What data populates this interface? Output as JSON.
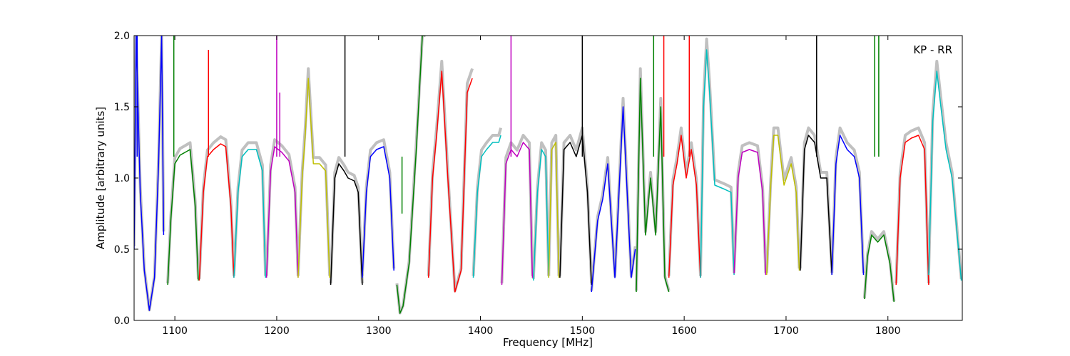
{
  "chart_data": {
    "type": "line",
    "annotation": "KP - RR",
    "xlabel": "Frequency [MHz]",
    "ylabel": "Amplitude [arbitrary units]",
    "xlim": [
      1060,
      1873
    ],
    "ylim": [
      0,
      2.0
    ],
    "x_ticks": [
      1100,
      1200,
      1300,
      1400,
      1500,
      1600,
      1700,
      1800
    ],
    "y_ticks": [
      0.0,
      0.5,
      1.0,
      1.5,
      2.0
    ],
    "x_tick_labels": [
      "1100",
      "1200",
      "1300",
      "1400",
      "1500",
      "1600",
      "1700",
      "1800"
    ],
    "y_tick_labels": [
      "0.0",
      "0.5",
      "1.0",
      "1.5",
      "2.0"
    ],
    "grid": false,
    "background_color": "#c0c0c0",
    "channel_colors": [
      "#0000ff",
      "#008000",
      "#ff0000",
      "#00bfbf",
      "#bf00bf",
      "#bfbf00",
      "#000000"
    ],
    "series": [
      {
        "color": "#0000ff",
        "x": [
          1060,
          1062,
          1066,
          1070,
          1075,
          1080,
          1084,
          1087,
          1089
        ],
        "y": [
          0.5,
          2.0,
          0.9,
          0.35,
          0.07,
          0.3,
          1.1,
          2.0,
          0.6
        ]
      },
      {
        "color": "#008000",
        "x": [
          1093,
          1096,
          1100,
          1105,
          1110,
          1115,
          1120,
          1123
        ],
        "y": [
          0.25,
          0.7,
          1.1,
          1.16,
          1.18,
          1.2,
          0.8,
          0.28
        ]
      },
      {
        "color": "#ff0000",
        "x": [
          1124,
          1128,
          1132,
          1138,
          1145,
          1150,
          1155,
          1158
        ],
        "y": [
          0.28,
          0.9,
          1.15,
          1.2,
          1.24,
          1.22,
          0.8,
          0.3
        ]
      },
      {
        "color": "#00bfbf",
        "x": [
          1158,
          1162,
          1166,
          1172,
          1180,
          1186,
          1189
        ],
        "y": [
          0.3,
          0.9,
          1.15,
          1.2,
          1.2,
          1.05,
          0.3
        ]
      },
      {
        "color": "#bf00bf",
        "x": [
          1190,
          1194,
          1198,
          1205,
          1212,
          1218,
          1221
        ],
        "y": [
          0.3,
          1.05,
          1.22,
          1.18,
          1.12,
          0.9,
          0.3
        ]
      },
      {
        "color": "#bfbf00",
        "x": [
          1221,
          1225,
          1228,
          1231,
          1236,
          1242,
          1248,
          1252
        ],
        "y": [
          0.3,
          1.0,
          1.3,
          1.7,
          1.1,
          1.1,
          1.05,
          0.3
        ]
      },
      {
        "color": "#000000",
        "x": [
          1253,
          1257,
          1261,
          1266,
          1270,
          1276,
          1280,
          1284
        ],
        "y": [
          0.25,
          1.0,
          1.1,
          1.05,
          1.0,
          0.98,
          0.9,
          0.25
        ]
      },
      {
        "color": "#0000ff",
        "x": [
          1284,
          1288,
          1292,
          1298,
          1305,
          1311,
          1315
        ],
        "y": [
          0.3,
          0.9,
          1.15,
          1.2,
          1.22,
          1.0,
          0.35
        ]
      },
      {
        "color": "#008000",
        "x": [
          1318,
          1321,
          1324,
          1330,
          1337,
          1343,
          1346
        ],
        "y": [
          0.25,
          0.05,
          0.1,
          0.4,
          1.2,
          2.0,
          2.0
        ]
      },
      {
        "color": "#ff0000",
        "x": [
          1349,
          1353,
          1357,
          1362,
          1368,
          1375,
          1381,
          1387,
          1392
        ],
        "y": [
          0.3,
          1.0,
          1.3,
          1.75,
          1.0,
          0.2,
          0.35,
          1.6,
          1.7
        ]
      },
      {
        "color": "#00bfbf",
        "x": [
          1393,
          1397,
          1401,
          1406,
          1412,
          1418,
          1420
        ],
        "y": [
          0.3,
          0.9,
          1.15,
          1.2,
          1.25,
          1.25,
          1.3
        ]
      },
      {
        "color": "#bf00bf",
        "x": [
          1421,
          1425,
          1430,
          1436,
          1442,
          1448,
          1451
        ],
        "y": [
          0.25,
          1.1,
          1.2,
          1.15,
          1.25,
          1.2,
          0.3
        ]
      },
      {
        "color": "#00bfbf",
        "x": [
          1452,
          1456,
          1460,
          1464,
          1467
        ],
        "y": [
          0.28,
          0.9,
          1.2,
          1.15,
          0.3
        ]
      },
      {
        "color": "#bfbf00",
        "x": [
          1467,
          1470,
          1474,
          1477
        ],
        "y": [
          0.3,
          1.2,
          1.25,
          0.3
        ]
      },
      {
        "color": "#000000",
        "x": [
          1478,
          1482,
          1488,
          1494,
          1500,
          1505,
          1509
        ],
        "y": [
          0.3,
          1.2,
          1.25,
          1.15,
          1.3,
          0.9,
          0.25
        ]
      },
      {
        "color": "#0000ff",
        "x": [
          1509,
          1515,
          1520,
          1525,
          1532,
          1540,
          1548,
          1552
        ],
        "y": [
          0.2,
          0.7,
          0.85,
          1.1,
          0.3,
          1.5,
          0.3,
          0.5
        ]
      },
      {
        "color": "#008000",
        "x": [
          1553,
          1557,
          1562,
          1567,
          1572,
          1577,
          1581,
          1585
        ],
        "y": [
          0.2,
          1.7,
          0.6,
          1.0,
          0.6,
          1.5,
          0.3,
          0.2
        ]
      },
      {
        "color": "#ff0000",
        "x": [
          1585,
          1589,
          1593,
          1597,
          1602,
          1607,
          1612,
          1616
        ],
        "y": [
          0.3,
          0.95,
          1.1,
          1.3,
          1.0,
          1.2,
          0.95,
          0.3
        ]
      },
      {
        "color": "#00bfbf",
        "x": [
          1616,
          1619,
          1622,
          1625,
          1630,
          1640,
          1646,
          1649
        ],
        "y": [
          0.3,
          1.5,
          1.9,
          1.6,
          0.95,
          0.92,
          0.9,
          0.32
        ]
      },
      {
        "color": "#bf00bf",
        "x": [
          1649,
          1653,
          1657,
          1664,
          1672,
          1677,
          1680
        ],
        "y": [
          0.33,
          1.0,
          1.18,
          1.2,
          1.18,
          0.9,
          0.32
        ]
      },
      {
        "color": "#bfbf00",
        "x": [
          1681,
          1685,
          1688,
          1692,
          1698,
          1705,
          1710,
          1713
        ],
        "y": [
          0.32,
          0.95,
          1.3,
          1.3,
          0.95,
          1.1,
          0.9,
          0.35
        ]
      },
      {
        "color": "#000000",
        "x": [
          1714,
          1718,
          1722,
          1728,
          1734,
          1740,
          1745
        ],
        "y": [
          0.35,
          1.2,
          1.3,
          1.25,
          1.0,
          1.0,
          0.32
        ]
      },
      {
        "color": "#0000ff",
        "x": [
          1745,
          1749,
          1753,
          1760,
          1767,
          1772,
          1776
        ],
        "y": [
          0.32,
          1.1,
          1.3,
          1.2,
          1.15,
          1.0,
          0.32
        ]
      },
      {
        "color": "#008000",
        "x": [
          1777,
          1780,
          1784,
          1790,
          1796,
          1802,
          1806
        ],
        "y": [
          0.15,
          0.45,
          0.6,
          0.55,
          0.6,
          0.4,
          0.13
        ]
      },
      {
        "color": "#ff0000",
        "x": [
          1808,
          1812,
          1817,
          1823,
          1830,
          1836,
          1840
        ],
        "y": [
          0.25,
          1.0,
          1.25,
          1.28,
          1.3,
          1.2,
          0.25
        ]
      },
      {
        "color": "#00bfbf",
        "x": [
          1840,
          1844,
          1848,
          1852,
          1857,
          1863,
          1868,
          1872
        ],
        "y": [
          0.32,
          1.4,
          1.75,
          1.5,
          1.2,
          1.0,
          0.6,
          0.28
        ]
      }
    ],
    "spikes": [
      {
        "color": "#0000ff",
        "x": 1063,
        "y": 2.0
      },
      {
        "color": "#008000",
        "x": 1099,
        "y": 2.0
      },
      {
        "color": "#ff0000",
        "x": 1133,
        "y": 1.9
      },
      {
        "color": "#bf00bf",
        "x": 1200,
        "y": 2.0
      },
      {
        "color": "#bf00bf",
        "x": 1203,
        "y": 1.6
      },
      {
        "color": "#000000",
        "x": 1267,
        "y": 2.0
      },
      {
        "color": "#008000",
        "x": 1323,
        "y": 0.75
      },
      {
        "color": "#bf00bf",
        "x": 1430,
        "y": 2.0
      },
      {
        "color": "#000000",
        "x": 1500,
        "y": 2.0
      },
      {
        "color": "#008000",
        "x": 1570,
        "y": 2.0
      },
      {
        "color": "#ff0000",
        "x": 1580,
        "y": 2.0
      },
      {
        "color": "#ff0000",
        "x": 1605,
        "y": 2.0
      },
      {
        "color": "#000000",
        "x": 1730,
        "y": 2.0
      },
      {
        "color": "#008000",
        "x": 1787,
        "y": 2.0
      },
      {
        "color": "#008000",
        "x": 1791,
        "y": 2.0
      }
    ]
  }
}
